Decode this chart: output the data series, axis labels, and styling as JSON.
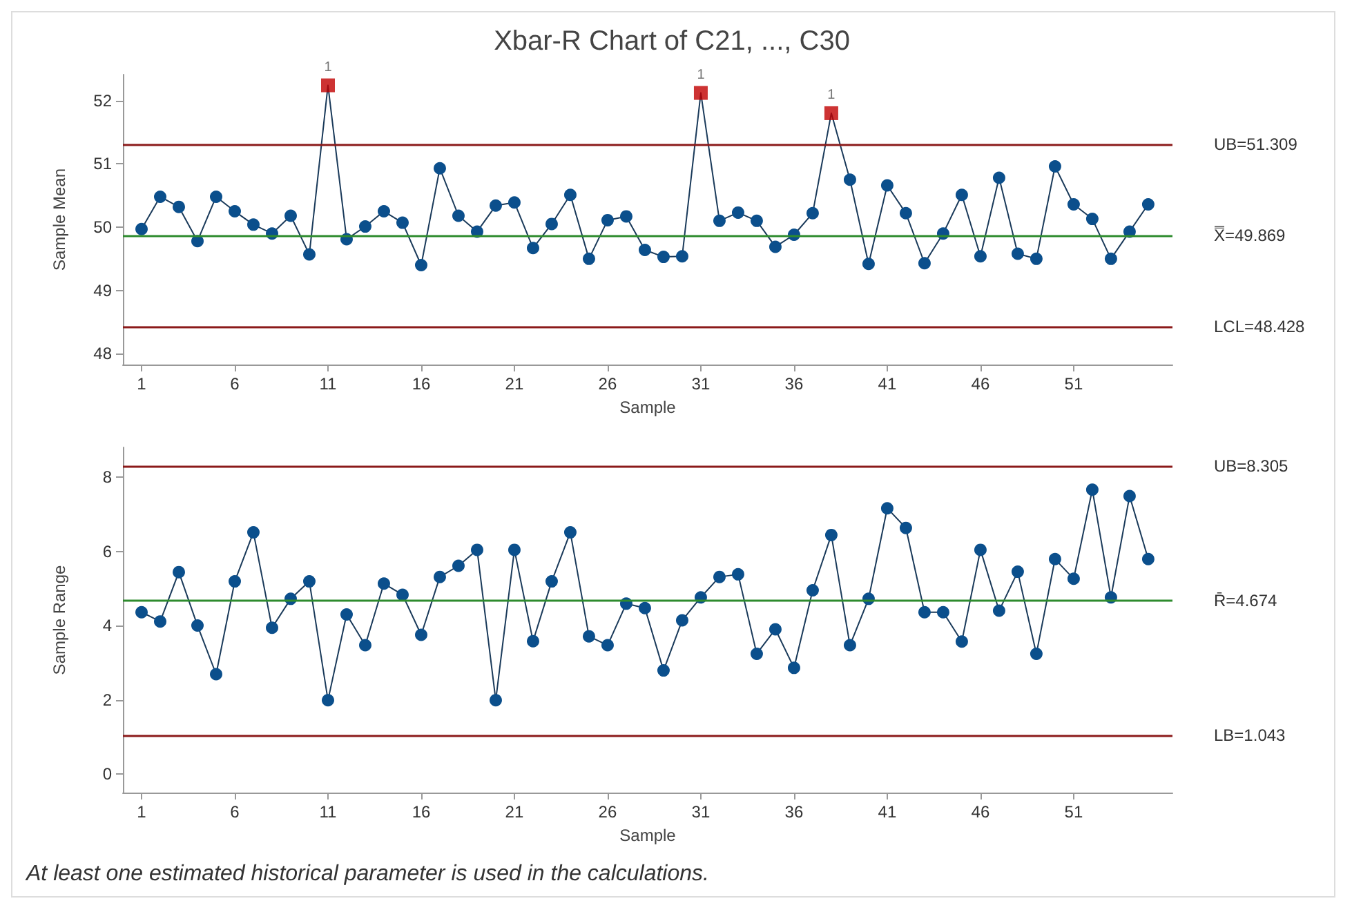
{
  "chart_data": [
    {
      "type": "line",
      "title": "Xbar-R Chart of C21, ..., C30",
      "xlabel": "Sample",
      "ylabel": "Sample Mean",
      "x": [
        1,
        2,
        3,
        4,
        5,
        6,
        7,
        8,
        9,
        10,
        11,
        12,
        13,
        14,
        15,
        16,
        17,
        18,
        19,
        20,
        21,
        22,
        23,
        24,
        25,
        26,
        27,
        28,
        29,
        30,
        31,
        32,
        33,
        34,
        35,
        36,
        37,
        38,
        39,
        40,
        41,
        42,
        43,
        44,
        45,
        46,
        47,
        48,
        49,
        50,
        51,
        52,
        53,
        54,
        55
      ],
      "xlim": [
        0,
        56.3
      ],
      "xticks": [
        1,
        6,
        11,
        16,
        21,
        26,
        31,
        36,
        41,
        46,
        51
      ],
      "ylim": [
        47.83,
        52.41
      ],
      "yticks": [
        48,
        49,
        50,
        51,
        52
      ],
      "grid": false,
      "marker": "circle",
      "line_style": "solid",
      "series": [
        {
          "color": "#0b4f8c",
          "values": [
            49.97,
            50.48,
            50.32,
            49.78,
            50.48,
            50.25,
            50.04,
            49.9,
            50.18,
            49.57,
            52.24,
            49.81,
            50.01,
            50.25,
            50.07,
            49.4,
            50.93,
            50.18,
            49.93,
            50.34,
            50.39,
            49.67,
            50.05,
            50.51,
            49.5,
            50.11,
            50.17,
            49.64,
            49.53,
            49.54,
            52.12,
            50.1,
            50.23,
            50.1,
            49.69,
            49.88,
            50.22,
            51.8,
            50.75,
            49.42,
            50.66,
            50.22,
            49.43,
            49.9,
            50.51,
            49.54,
            50.78,
            49.58,
            49.5,
            50.96,
            50.36,
            50.13,
            49.5,
            49.93,
            50.36
          ]
        },
        {
          "type": "scatter",
          "marker": "square",
          "color": "#c00000",
          "x": [
            11,
            31,
            38
          ],
          "values": [
            52.24,
            52.12,
            51.8
          ]
        }
      ],
      "annotations": [
        {
          "text": "1",
          "x": 11,
          "y": 52.24
        },
        {
          "text": "1",
          "x": 31,
          "y": 52.12
        },
        {
          "text": "1",
          "x": 38,
          "y": 51.8
        }
      ],
      "ref_lines": [
        {
          "axis": "y",
          "value": 51.309,
          "label": "UB=51.309",
          "color": "#8b1a1a"
        },
        {
          "axis": "y",
          "value": 49.869,
          "label": "X̿=49.869",
          "color": "#2e8b2e"
        },
        {
          "axis": "y",
          "value": 48.428,
          "label": "LCL=48.428",
          "color": "#8b1a1a"
        }
      ]
    },
    {
      "type": "line",
      "xlabel": "Sample",
      "ylabel": "Sample Range",
      "x": [
        1,
        2,
        3,
        4,
        5,
        6,
        7,
        8,
        9,
        10,
        11,
        12,
        13,
        14,
        15,
        16,
        17,
        18,
        19,
        20,
        21,
        22,
        23,
        24,
        25,
        26,
        27,
        28,
        29,
        30,
        31,
        32,
        33,
        34,
        35,
        36,
        37,
        38,
        39,
        40,
        41,
        42,
        43,
        44,
        45,
        46,
        47,
        48,
        49,
        50,
        51,
        52,
        53,
        54,
        55
      ],
      "xlim": [
        0,
        56.3
      ],
      "xticks": [
        1,
        6,
        11,
        16,
        21,
        26,
        31,
        36,
        41,
        46,
        51
      ],
      "ylim": [
        -0.5,
        8.8
      ],
      "yticks": [
        0,
        2,
        4,
        6,
        8
      ],
      "grid": false,
      "marker": "circle",
      "line_style": "solid",
      "series": [
        {
          "color": "#0b4f8c",
          "values": [
            4.36,
            4.11,
            5.44,
            4.0,
            2.69,
            5.19,
            6.51,
            3.94,
            4.72,
            5.19,
            1.99,
            4.3,
            3.47,
            5.13,
            4.83,
            3.75,
            5.31,
            5.61,
            6.04,
            1.99,
            6.04,
            3.58,
            5.19,
            6.51,
            3.71,
            3.47,
            4.59,
            4.47,
            2.79,
            4.14,
            4.76,
            5.31,
            5.38,
            3.24,
            3.9,
            2.86,
            4.95,
            6.44,
            3.47,
            4.72,
            7.16,
            6.63,
            4.36,
            4.36,
            3.57,
            6.04,
            4.4,
            5.45,
            3.24,
            5.79,
            5.26,
            7.66,
            4.76,
            7.49,
            5.79
          ]
        }
      ],
      "ref_lines": [
        {
          "axis": "y",
          "value": 8.305,
          "label": "UB=8.305",
          "color": "#8b1a1a"
        },
        {
          "axis": "y",
          "value": 4.674,
          "label": "R̄=4.674",
          "color": "#2e8b2e"
        },
        {
          "axis": "y",
          "value": 1.043,
          "label": "LB=1.043",
          "color": "#8b1a1a"
        }
      ],
      "annotations": [
        "At least one estimated historical parameter is used in the calculations."
      ]
    }
  ]
}
